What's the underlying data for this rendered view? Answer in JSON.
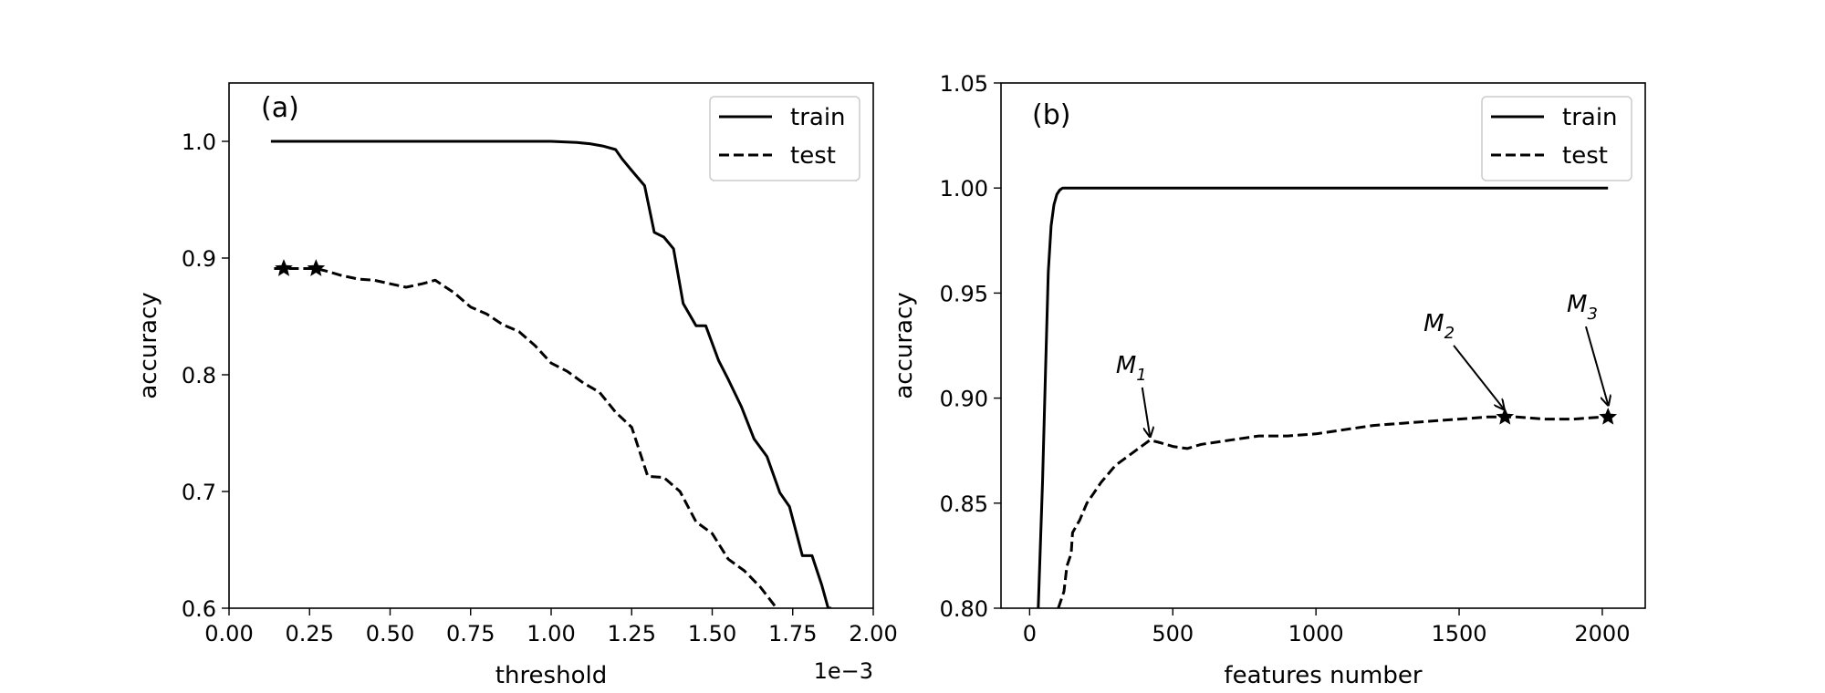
{
  "chart_data": [
    {
      "type": "line",
      "panel_label": "(a)",
      "xlabel": "threshold",
      "x_offset_text": "1e−3",
      "ylabel": "accuracy",
      "xlim": [
        0.0,
        0.002
      ],
      "ylim": [
        0.6,
        1.05
      ],
      "x_ticks": [
        0.0,
        0.00025,
        0.0005,
        0.00075,
        0.001,
        0.00125,
        0.0015,
        0.00175,
        0.002
      ],
      "x_tick_labels": [
        "0.00",
        "0.25",
        "0.50",
        "0.75",
        "1.00",
        "1.25",
        "1.50",
        "1.75",
        "2.00"
      ],
      "y_ticks": [
        0.6,
        0.7,
        0.8,
        0.9,
        1.0
      ],
      "y_tick_labels": [
        "0.6",
        "0.7",
        "0.8",
        "0.9",
        "1.0"
      ],
      "grid": false,
      "legend": "top-right",
      "series": [
        {
          "name": "train",
          "style": "solid",
          "x": [
            0.00013,
            0.0003,
            0.0005,
            0.0007,
            0.0009,
            0.001,
            0.00108,
            0.00112,
            0.00116,
            0.0012,
            0.00122,
            0.00125,
            0.00129,
            0.00132,
            0.00135,
            0.00138,
            0.00141,
            0.00145,
            0.00148,
            0.00152,
            0.00155,
            0.00159,
            0.00163,
            0.00167,
            0.00171,
            0.00174,
            0.00178,
            0.00181,
            0.00184,
            0.00186,
            0.00187
          ],
          "y": [
            1.0,
            1.0,
            1.0,
            1.0,
            1.0,
            1.0,
            0.999,
            0.998,
            0.996,
            0.993,
            0.985,
            0.975,
            0.962,
            0.922,
            0.918,
            0.908,
            0.861,
            0.842,
            0.842,
            0.812,
            0.796,
            0.773,
            0.745,
            0.73,
            0.699,
            0.687,
            0.645,
            0.645,
            0.62,
            0.6,
            0.6
          ]
        },
        {
          "name": "test",
          "style": "dashed",
          "x": [
            0.00014,
            0.00017,
            0.0002,
            0.00027,
            0.0003,
            0.00035,
            0.0004,
            0.00045,
            0.0005,
            0.00055,
            0.0006,
            0.00064,
            0.0007,
            0.00075,
            0.0008,
            0.00085,
            0.0009,
            0.00095,
            0.001,
            0.00105,
            0.0011,
            0.00115,
            0.0012,
            0.00125,
            0.0013,
            0.00135,
            0.0014,
            0.00145,
            0.0015,
            0.00155,
            0.0016,
            0.00165,
            0.0017,
            0.00174
          ],
          "y": [
            0.891,
            0.891,
            0.891,
            0.891,
            0.889,
            0.885,
            0.882,
            0.881,
            0.878,
            0.875,
            0.878,
            0.881,
            0.87,
            0.858,
            0.852,
            0.843,
            0.837,
            0.825,
            0.81,
            0.803,
            0.793,
            0.785,
            0.768,
            0.755,
            0.713,
            0.712,
            0.7,
            0.674,
            0.664,
            0.642,
            0.632,
            0.618,
            0.6,
            0.595
          ],
          "markers": [
            {
              "x": 0.00017,
              "y": 0.891
            },
            {
              "x": 0.00027,
              "y": 0.891
            }
          ]
        }
      ]
    },
    {
      "type": "line",
      "panel_label": "(b)",
      "xlabel": "features number",
      "ylabel": "accuracy",
      "xlim": [
        -100,
        2150
      ],
      "ylim": [
        0.8,
        1.05
      ],
      "x_ticks": [
        0,
        500,
        1000,
        1500,
        2000
      ],
      "x_tick_labels": [
        "0",
        "500",
        "1000",
        "1500",
        "2000"
      ],
      "y_ticks": [
        0.8,
        0.85,
        0.9,
        0.95,
        1.0,
        1.05
      ],
      "y_tick_labels": [
        "0.80",
        "0.85",
        "0.90",
        "0.95",
        "1.00",
        "1.05"
      ],
      "grid": false,
      "legend": "top-right",
      "series": [
        {
          "name": "train",
          "style": "solid",
          "x": [
            30,
            45,
            55,
            65,
            75,
            85,
            95,
            105,
            115,
            130,
            200,
            500,
            1000,
            1500,
            2000,
            2020
          ],
          "y": [
            0.8,
            0.86,
            0.91,
            0.96,
            0.982,
            0.992,
            0.997,
            0.999,
            1.0,
            1.0,
            1.0,
            1.0,
            1.0,
            1.0,
            1.0,
            1.0
          ],
          "x_start": 30
        },
        {
          "name": "test",
          "style": "dashed",
          "x": [
            100,
            120,
            130,
            145,
            150,
            175,
            200,
            225,
            250,
            300,
            350,
            400,
            420,
            450,
            500,
            550,
            600,
            700,
            800,
            900,
            1000,
            1100,
            1200,
            1300,
            1400,
            1500,
            1600,
            1660,
            1700,
            1800,
            1900,
            2000,
            2020
          ],
          "y": [
            0.8,
            0.808,
            0.82,
            0.826,
            0.836,
            0.842,
            0.85,
            0.855,
            0.86,
            0.868,
            0.873,
            0.878,
            0.88,
            0.879,
            0.877,
            0.876,
            0.878,
            0.88,
            0.882,
            0.882,
            0.883,
            0.885,
            0.887,
            0.888,
            0.889,
            0.89,
            0.891,
            0.891,
            0.891,
            0.89,
            0.89,
            0.891,
            0.891
          ],
          "markers": [
            {
              "x": 1660,
              "y": 0.891
            },
            {
              "x": 2020,
              "y": 0.891
            }
          ]
        }
      ],
      "annotations": [
        {
          "base": "M",
          "sub": "1",
          "text_x": 355,
          "text_y": 0.912,
          "arrow_to_x": 420,
          "arrow_to_y": 0.882
        },
        {
          "base": "M",
          "sub": "2",
          "text_x": 1430,
          "text_y": 0.932,
          "arrow_to_x": 1655,
          "arrow_to_y": 0.895
        },
        {
          "base": "M",
          "sub": "3",
          "text_x": 1930,
          "text_y": 0.941,
          "arrow_to_x": 2020,
          "arrow_to_y": 0.897
        }
      ]
    }
  ]
}
